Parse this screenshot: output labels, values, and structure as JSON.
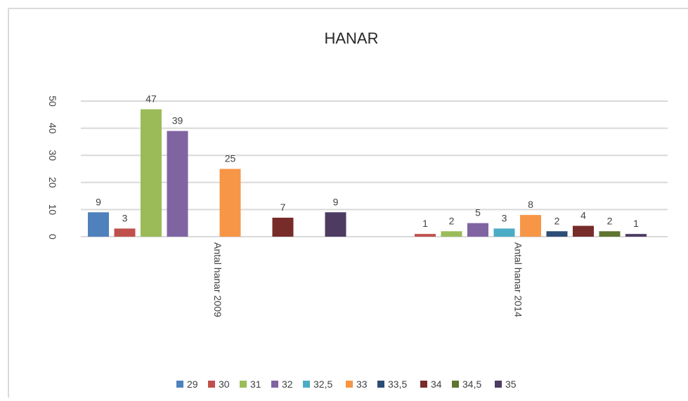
{
  "chart_data": {
    "type": "bar",
    "title": "HANAR",
    "categories": [
      "Antal hanar 2009",
      "Antal hanar 2014"
    ],
    "series": [
      {
        "name": "29",
        "color": "#4f81bd",
        "values": [
          9,
          null
        ]
      },
      {
        "name": "30",
        "color": "#c0504d",
        "values": [
          3,
          1
        ]
      },
      {
        "name": "31",
        "color": "#9bbb59",
        "values": [
          47,
          2
        ]
      },
      {
        "name": "32",
        "color": "#8064a2",
        "values": [
          39,
          5
        ]
      },
      {
        "name": "32,5",
        "color": "#4bacc6",
        "values": [
          null,
          3
        ]
      },
      {
        "name": "33",
        "color": "#f79646",
        "values": [
          25,
          8
        ]
      },
      {
        "name": "33,5",
        "color": "#2c4d75",
        "values": [
          null,
          2
        ]
      },
      {
        "name": "34",
        "color": "#772c2a",
        "values": [
          7,
          4
        ]
      },
      {
        "name": "34,5",
        "color": "#5f7530",
        "values": [
          null,
          2
        ]
      },
      {
        "name": "35",
        "color": "#4d3b62",
        "values": [
          9,
          1
        ]
      }
    ],
    "ylim": [
      0,
      50
    ],
    "yticks": [
      0,
      10,
      20,
      30,
      40,
      50
    ],
    "grid": true,
    "legend": "bottom"
  }
}
